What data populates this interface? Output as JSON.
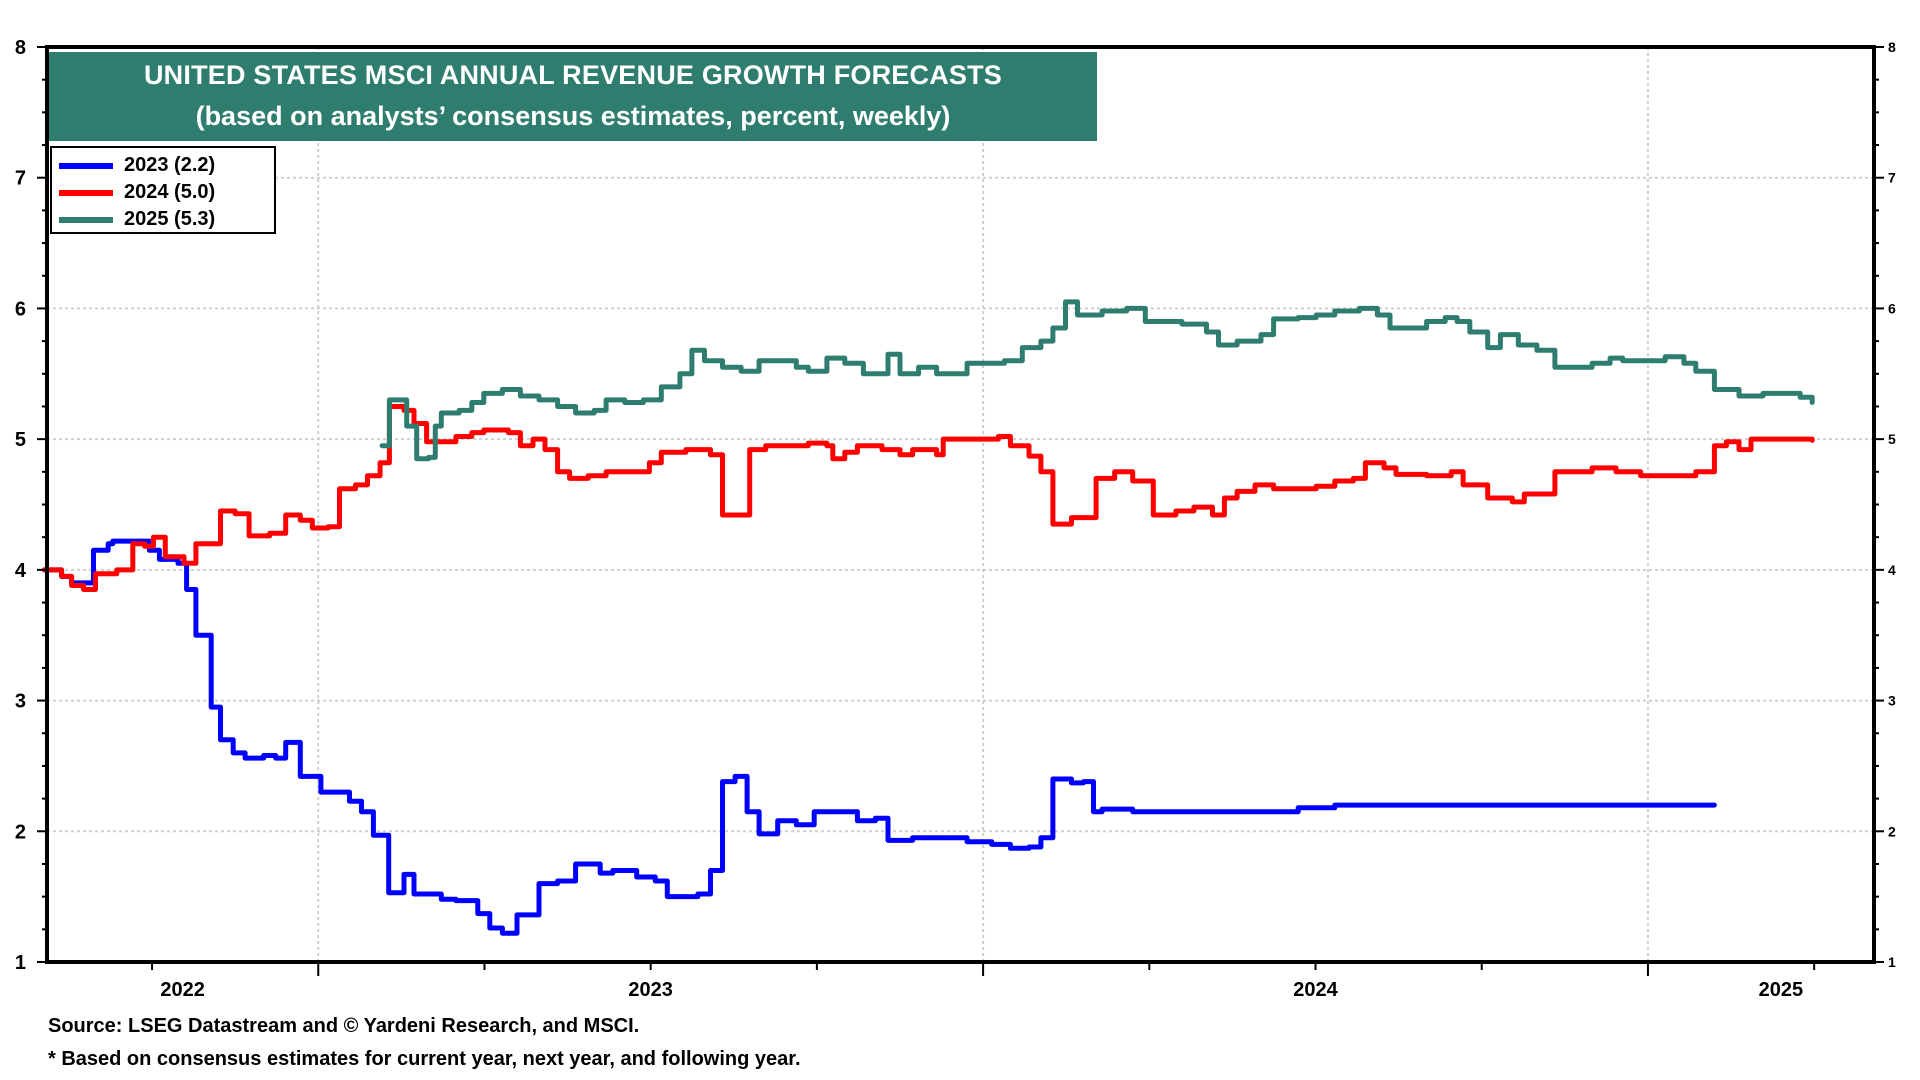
{
  "chart_data": {
    "type": "line",
    "title": "UNITED STATES MSCI ANNUAL REVENUE GROWTH FORECASTS",
    "subtitle": "(based on analysts’ consensus estimates, percent, weekly)",
    "xlabel": "",
    "ylabel": "",
    "x_units": "decimal year",
    "xlim": [
      2022.592,
      2025.34
    ],
    "ylim": [
      1,
      8
    ],
    "y_ticks": [
      1,
      2,
      3,
      4,
      5,
      6,
      7,
      8
    ],
    "y_tick_labels_left": [
      "1",
      "2",
      "3",
      "4",
      "5",
      "6",
      "7",
      "8"
    ],
    "y_tick_labels_right": [
      "1",
      "2",
      "3",
      "4",
      "5",
      "6",
      "7",
      "8"
    ],
    "x_gridlines": [
      2023,
      2024,
      2025
    ],
    "x_tick_labels": [
      {
        "label": "2022",
        "at": 2022.796
      },
      {
        "label": "2023",
        "at": 2023.5
      },
      {
        "label": "2024",
        "at": 2024.5
      },
      {
        "label": "2025",
        "at": 2025.2
      }
    ],
    "grid": true,
    "legend_position": "top-left",
    "series": [
      {
        "name": "2023 (2.2)",
        "color": "#0000ff",
        "points": [
          [
            2022.588,
            4.0
          ],
          [
            2022.614,
            3.95
          ],
          [
            2022.629,
            3.9
          ],
          [
            2022.651,
            3.9
          ],
          [
            2022.662,
            4.15
          ],
          [
            2022.684,
            4.2
          ],
          [
            2022.691,
            4.22
          ],
          [
            2022.739,
            4.22
          ],
          [
            2022.746,
            4.15
          ],
          [
            2022.761,
            4.08
          ],
          [
            2022.789,
            4.05
          ],
          [
            2022.802,
            3.85
          ],
          [
            2022.816,
            3.5
          ],
          [
            2022.839,
            2.95
          ],
          [
            2022.853,
            2.7
          ],
          [
            2022.872,
            2.6
          ],
          [
            2022.89,
            2.56
          ],
          [
            2022.918,
            2.58
          ],
          [
            2022.936,
            2.56
          ],
          [
            2022.951,
            2.68
          ],
          [
            2022.973,
            2.42
          ],
          [
            2023.004,
            2.3
          ],
          [
            2023.047,
            2.23
          ],
          [
            2023.065,
            2.15
          ],
          [
            2023.083,
            1.97
          ],
          [
            2023.106,
            1.53
          ],
          [
            2023.129,
            1.67
          ],
          [
            2023.144,
            1.52
          ],
          [
            2023.185,
            1.48
          ],
          [
            2023.207,
            1.47
          ],
          [
            2023.24,
            1.37
          ],
          [
            2023.258,
            1.26
          ],
          [
            2023.277,
            1.22
          ],
          [
            2023.299,
            1.36
          ],
          [
            2023.332,
            1.6
          ],
          [
            2023.36,
            1.62
          ],
          [
            2023.387,
            1.75
          ],
          [
            2023.424,
            1.68
          ],
          [
            2023.443,
            1.7
          ],
          [
            2023.479,
            1.65
          ],
          [
            2023.507,
            1.62
          ],
          [
            2023.525,
            1.5
          ],
          [
            2023.553,
            1.5
          ],
          [
            2023.571,
            1.52
          ],
          [
            2023.59,
            1.7
          ],
          [
            2023.608,
            2.38
          ],
          [
            2023.627,
            2.42
          ],
          [
            2023.645,
            2.15
          ],
          [
            2023.663,
            1.98
          ],
          [
            2023.691,
            2.08
          ],
          [
            2023.719,
            2.05
          ],
          [
            2023.746,
            2.15
          ],
          [
            2023.774,
            2.15
          ],
          [
            2023.811,
            2.08
          ],
          [
            2023.838,
            2.1
          ],
          [
            2023.857,
            1.93
          ],
          [
            2023.894,
            1.95
          ],
          [
            2023.94,
            1.95
          ],
          [
            2023.976,
            1.92
          ],
          [
            2024.013,
            1.9
          ],
          [
            2024.041,
            1.87
          ],
          [
            2024.069,
            1.88
          ],
          [
            2024.087,
            1.95
          ],
          [
            2024.105,
            2.4
          ],
          [
            2024.133,
            2.37
          ],
          [
            2024.151,
            2.38
          ],
          [
            2024.166,
            2.15
          ],
          [
            2024.179,
            2.17
          ],
          [
            2024.225,
            2.15
          ],
          [
            2024.437,
            2.15
          ],
          [
            2024.474,
            2.18
          ],
          [
            2024.529,
            2.2
          ],
          [
            2024.916,
            2.2
          ],
          [
            2024.989,
            2.2
          ],
          [
            2025.1,
            2.2
          ]
        ]
      },
      {
        "name": "2024 (5.0)",
        "color": "#ff0000",
        "points": [
          [
            2022.588,
            4.0
          ],
          [
            2022.614,
            3.95
          ],
          [
            2022.629,
            3.88
          ],
          [
            2022.647,
            3.85
          ],
          [
            2022.665,
            3.97
          ],
          [
            2022.697,
            4.0
          ],
          [
            2022.721,
            4.2
          ],
          [
            2022.739,
            4.18
          ],
          [
            2022.752,
            4.25
          ],
          [
            2022.77,
            4.1
          ],
          [
            2022.798,
            4.05
          ],
          [
            2022.816,
            4.2
          ],
          [
            2022.839,
            4.2
          ],
          [
            2022.853,
            4.45
          ],
          [
            2022.875,
            4.43
          ],
          [
            2022.896,
            4.26
          ],
          [
            2022.927,
            4.28
          ],
          [
            2022.951,
            4.42
          ],
          [
            2022.973,
            4.38
          ],
          [
            2022.991,
            4.32
          ],
          [
            2023.015,
            4.33
          ],
          [
            2023.032,
            4.62
          ],
          [
            2023.056,
            4.65
          ],
          [
            2023.074,
            4.72
          ],
          [
            2023.093,
            4.82
          ],
          [
            2023.107,
            5.25
          ],
          [
            2023.129,
            5.22
          ],
          [
            2023.144,
            5.12
          ],
          [
            2023.163,
            4.98
          ],
          [
            2023.185,
            4.98
          ],
          [
            2023.207,
            5.02
          ],
          [
            2023.231,
            5.05
          ],
          [
            2023.249,
            5.07
          ],
          [
            2023.286,
            5.05
          ],
          [
            2023.304,
            4.95
          ],
          [
            2023.323,
            5.0
          ],
          [
            2023.341,
            4.92
          ],
          [
            2023.36,
            4.75
          ],
          [
            2023.378,
            4.7
          ],
          [
            2023.406,
            4.72
          ],
          [
            2023.433,
            4.75
          ],
          [
            2023.479,
            4.75
          ],
          [
            2023.498,
            4.82
          ],
          [
            2023.516,
            4.9
          ],
          [
            2023.553,
            4.92
          ],
          [
            2023.59,
            4.88
          ],
          [
            2023.608,
            4.42
          ],
          [
            2023.645,
            4.42
          ],
          [
            2023.649,
            4.92
          ],
          [
            2023.673,
            4.95
          ],
          [
            2023.737,
            4.97
          ],
          [
            2023.765,
            4.95
          ],
          [
            2023.774,
            4.85
          ],
          [
            2023.792,
            4.9
          ],
          [
            2023.811,
            4.95
          ],
          [
            2023.848,
            4.92
          ],
          [
            2023.875,
            4.88
          ],
          [
            2023.894,
            4.92
          ],
          [
            2023.93,
            4.88
          ],
          [
            2023.94,
            5.0
          ],
          [
            2023.976,
            5.0
          ],
          [
            2024.023,
            5.02
          ],
          [
            2024.041,
            4.95
          ],
          [
            2024.069,
            4.87
          ],
          [
            2024.087,
            4.75
          ],
          [
            2024.105,
            4.35
          ],
          [
            2024.133,
            4.4
          ],
          [
            2024.164,
            4.4
          ],
          [
            2024.17,
            4.7
          ],
          [
            2024.198,
            4.75
          ],
          [
            2024.225,
            4.68
          ],
          [
            2024.256,
            4.42
          ],
          [
            2024.29,
            4.45
          ],
          [
            2024.317,
            4.48
          ],
          [
            2024.345,
            4.42
          ],
          [
            2024.363,
            4.55
          ],
          [
            2024.382,
            4.6
          ],
          [
            2024.409,
            4.65
          ],
          [
            2024.437,
            4.62
          ],
          [
            2024.501,
            4.64
          ],
          [
            2024.529,
            4.68
          ],
          [
            2024.557,
            4.7
          ],
          [
            2024.575,
            4.82
          ],
          [
            2024.603,
            4.78
          ],
          [
            2024.621,
            4.73
          ],
          [
            2024.667,
            4.72
          ],
          [
            2024.704,
            4.75
          ],
          [
            2024.722,
            4.65
          ],
          [
            2024.759,
            4.55
          ],
          [
            2024.796,
            4.52
          ],
          [
            2024.814,
            4.58
          ],
          [
            2024.86,
            4.75
          ],
          [
            2024.888,
            4.75
          ],
          [
            2024.916,
            4.78
          ],
          [
            2024.952,
            4.75
          ],
          [
            2024.989,
            4.72
          ],
          [
            2025.045,
            4.72
          ],
          [
            2025.072,
            4.75
          ],
          [
            2025.1,
            4.95
          ],
          [
            2025.118,
            4.98
          ],
          [
            2025.137,
            4.92
          ],
          [
            2025.155,
            5.0
          ],
          [
            2025.192,
            5.0
          ],
          [
            2025.229,
            5.0
          ],
          [
            2025.247,
            4.99
          ]
        ]
      },
      {
        "name": "2025 (5.3)",
        "color": "#2e7d6e",
        "points": [
          [
            2023.096,
            4.95
          ],
          [
            2023.107,
            5.3
          ],
          [
            2023.126,
            5.3
          ],
          [
            2023.133,
            5.1
          ],
          [
            2023.148,
            4.85
          ],
          [
            2023.166,
            4.86
          ],
          [
            2023.176,
            5.1
          ],
          [
            2023.185,
            5.2
          ],
          [
            2023.212,
            5.22
          ],
          [
            2023.231,
            5.28
          ],
          [
            2023.249,
            5.35
          ],
          [
            2023.277,
            5.38
          ],
          [
            2023.304,
            5.33
          ],
          [
            2023.332,
            5.3
          ],
          [
            2023.36,
            5.25
          ],
          [
            2023.387,
            5.2
          ],
          [
            2023.415,
            5.22
          ],
          [
            2023.433,
            5.3
          ],
          [
            2023.461,
            5.28
          ],
          [
            2023.489,
            5.3
          ],
          [
            2023.516,
            5.4
          ],
          [
            2023.544,
            5.5
          ],
          [
            2023.562,
            5.68
          ],
          [
            2023.581,
            5.6
          ],
          [
            2023.608,
            5.55
          ],
          [
            2023.636,
            5.52
          ],
          [
            2023.663,
            5.6
          ],
          [
            2023.7,
            5.6
          ],
          [
            2023.719,
            5.55
          ],
          [
            2023.737,
            5.52
          ],
          [
            2023.765,
            5.62
          ],
          [
            2023.792,
            5.58
          ],
          [
            2023.82,
            5.5
          ],
          [
            2023.857,
            5.65
          ],
          [
            2023.875,
            5.5
          ],
          [
            2023.903,
            5.55
          ],
          [
            2023.93,
            5.5
          ],
          [
            2023.949,
            5.5
          ],
          [
            2023.976,
            5.58
          ],
          [
            2024.004,
            5.58
          ],
          [
            2024.032,
            5.6
          ],
          [
            2024.059,
            5.7
          ],
          [
            2024.087,
            5.75
          ],
          [
            2024.105,
            5.85
          ],
          [
            2024.124,
            6.05
          ],
          [
            2024.142,
            5.95
          ],
          [
            2024.179,
            5.98
          ],
          [
            2024.216,
            6.0
          ],
          [
            2024.244,
            5.9
          ],
          [
            2024.271,
            5.9
          ],
          [
            2024.299,
            5.88
          ],
          [
            2024.336,
            5.82
          ],
          [
            2024.354,
            5.72
          ],
          [
            2024.382,
            5.75
          ],
          [
            2024.418,
            5.8
          ],
          [
            2024.437,
            5.92
          ],
          [
            2024.474,
            5.93
          ],
          [
            2024.501,
            5.95
          ],
          [
            2024.529,
            5.98
          ],
          [
            2024.566,
            6.0
          ],
          [
            2024.593,
            5.95
          ],
          [
            2024.612,
            5.85
          ],
          [
            2024.639,
            5.85
          ],
          [
            2024.667,
            5.9
          ],
          [
            2024.695,
            5.93
          ],
          [
            2024.713,
            5.9
          ],
          [
            2024.732,
            5.82
          ],
          [
            2024.759,
            5.7
          ],
          [
            2024.778,
            5.8
          ],
          [
            2024.805,
            5.72
          ],
          [
            2024.833,
            5.68
          ],
          [
            2024.86,
            5.55
          ],
          [
            2024.888,
            5.55
          ],
          [
            2024.916,
            5.58
          ],
          [
            2024.943,
            5.62
          ],
          [
            2024.962,
            5.6
          ],
          [
            2024.998,
            5.6
          ],
          [
            2025.026,
            5.63
          ],
          [
            2025.054,
            5.58
          ],
          [
            2025.072,
            5.52
          ],
          [
            2025.1,
            5.38
          ],
          [
            2025.137,
            5.33
          ],
          [
            2025.173,
            5.35
          ],
          [
            2025.21,
            5.35
          ],
          [
            2025.229,
            5.32
          ],
          [
            2025.247,
            5.28
          ]
        ]
      }
    ]
  },
  "title": {
    "line1": "UNITED STATES MSCI ANNUAL REVENUE GROWTH FORECASTS",
    "line2": "(based on analysts’ consensus estimates, percent, weekly)"
  },
  "legend": {
    "items": [
      {
        "label": "2023 (2.2)",
        "color": "#0000ff"
      },
      {
        "label": "2024 (5.0)",
        "color": "#ff0000"
      },
      {
        "label": "2025 (5.3)",
        "color": "#2e7d6e"
      }
    ]
  },
  "footnotes": {
    "source": "Source: LSEG Datastream and © Yardeni Research, and MSCI.",
    "note": "* Based on consensus estimates for current year, next year, and following year."
  }
}
